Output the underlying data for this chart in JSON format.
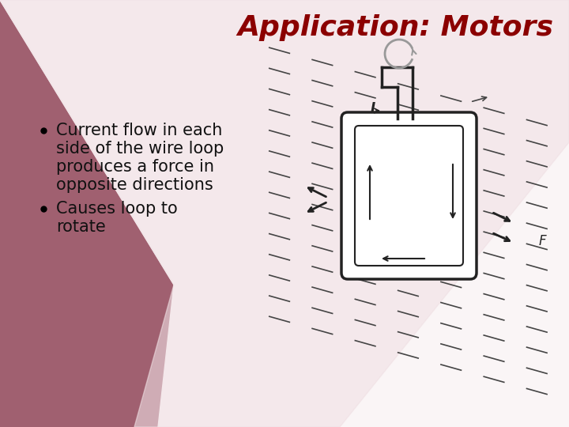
{
  "title": "Application: Motors",
  "title_color": "#8B0000",
  "title_fontsize": 26,
  "bullet1_line1": "Current flow in each",
  "bullet1_line2": "side of the wire loop",
  "bullet1_line3": "produces a force in",
  "bullet1_line4": "opposite directions",
  "bullet2_line1": "Causes loop to",
  "bullet2_line2": "rotate",
  "text_color": "#111111",
  "text_fontsize": 15,
  "bg_white": "#ffffff",
  "bg_light": "#f5eaec",
  "mauve_dark": "#a06070",
  "mauve_mid": "#c09098",
  "mauve_light": "#ddc0c6",
  "diagram_color": "#222222",
  "field_line_color": "#444444",
  "rotation_arrow_color": "#999999"
}
